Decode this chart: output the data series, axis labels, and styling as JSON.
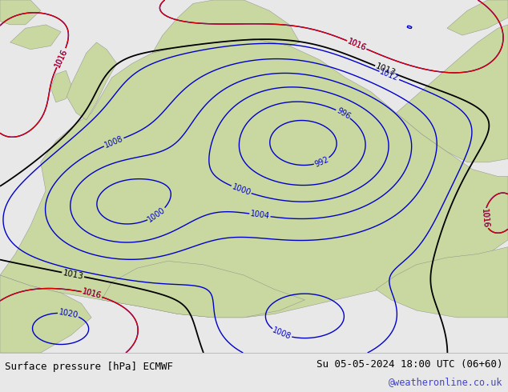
{
  "title_left": "Surface pressure [hPa] ECMWF",
  "title_right": "Su 05-05-2024 18:00 UTC (06+60)",
  "watermark": "@weatheronline.co.uk",
  "bg_color": "#e8e8e8",
  "land_color": "#c8d8a0",
  "sea_color": "#dde8f0",
  "contour_color_blue": "#0000cc",
  "contour_color_black": "#000000",
  "contour_color_red": "#dd0000",
  "text_color_left": "#000000",
  "text_color_right": "#000000",
  "text_color_watermark": "#4444cc",
  "footer_bg": "#ffffff",
  "font_size_footer": 9,
  "font_size_labels": 7
}
